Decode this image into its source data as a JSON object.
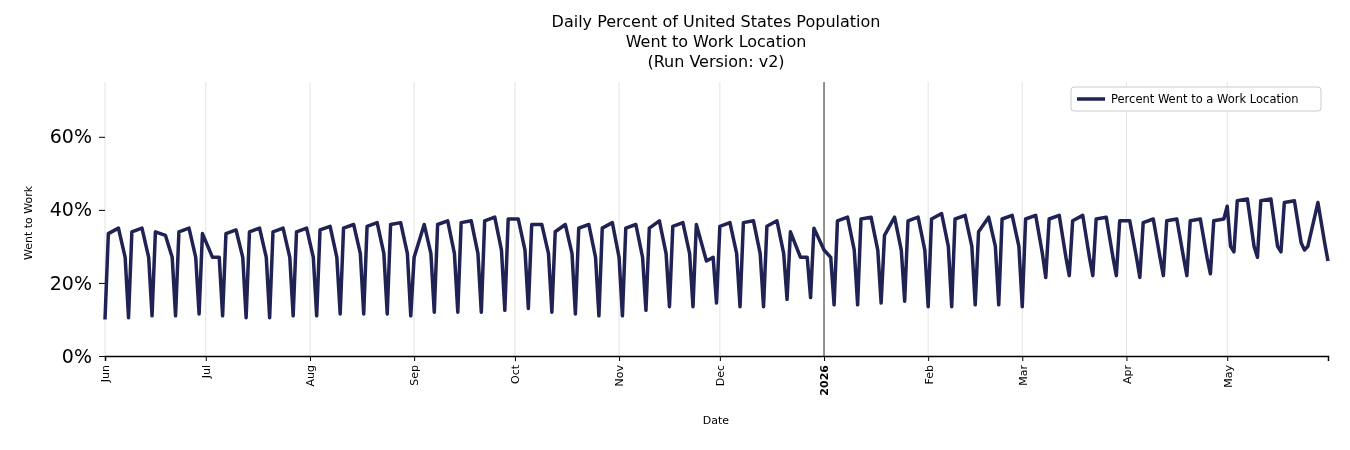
{
  "chart_data": {
    "type": "line",
    "title": "Daily Percent of United States Population\nWent to Work Location\n(Run Version: v2)",
    "xlabel": "Date",
    "ylabel": "Went to Work",
    "xlim": [
      "2025-06-01",
      "2026-05-31"
    ],
    "xticks": [
      {
        "value": "2025-06-01",
        "label": "Jun"
      },
      {
        "value": "2025-07-01",
        "label": "Jul"
      },
      {
        "value": "2025-08-01",
        "label": "Aug"
      },
      {
        "value": "2025-09-01",
        "label": "Sep"
      },
      {
        "value": "2025-10-01",
        "label": "Oct"
      },
      {
        "value": "2025-11-01",
        "label": "Nov"
      },
      {
        "value": "2025-12-01",
        "label": "Dec"
      },
      {
        "value": "2026-01-01",
        "label": "2026"
      },
      {
        "value": "2026-02-01",
        "label": "Feb"
      },
      {
        "value": "2026-03-01",
        "label": "Mar"
      },
      {
        "value": "2026-04-01",
        "label": "Apr"
      },
      {
        "value": "2026-05-01",
        "label": "May"
      }
    ],
    "ylim": [
      0,
      75
    ],
    "yticks": [
      {
        "value": 0,
        "label": "0%"
      },
      {
        "value": 20,
        "label": "20%"
      },
      {
        "value": 40,
        "label": "40%"
      },
      {
        "value": 60,
        "label": "60%"
      }
    ],
    "grid": "x",
    "legend": "top right",
    "marker": "none",
    "line_style": "solid",
    "ref_lines": [
      {
        "axis": "x",
        "value": "2026-01-01",
        "color": "#333333"
      }
    ],
    "x": [
      "2025-06-01",
      "2025-06-02",
      "2025-06-05",
      "2025-06-07",
      "2025-06-08",
      "2025-06-09",
      "2025-06-12",
      "2025-06-14",
      "2025-06-15",
      "2025-06-16",
      "2025-06-19",
      "2025-06-21",
      "2025-06-22",
      "2025-06-23",
      "2025-06-26",
      "2025-06-28",
      "2025-06-29",
      "2025-06-30",
      "2025-07-03",
      "2025-07-05",
      "2025-07-06",
      "2025-07-07",
      "2025-07-10",
      "2025-07-12",
      "2025-07-13",
      "2025-07-14",
      "2025-07-17",
      "2025-07-19",
      "2025-07-20",
      "2025-07-21",
      "2025-07-24",
      "2025-07-26",
      "2025-07-27",
      "2025-07-28",
      "2025-07-31",
      "2025-08-02",
      "2025-08-03",
      "2025-08-04",
      "2025-08-07",
      "2025-08-09",
      "2025-08-10",
      "2025-08-11",
      "2025-08-14",
      "2025-08-16",
      "2025-08-17",
      "2025-08-18",
      "2025-08-21",
      "2025-08-23",
      "2025-08-24",
      "2025-08-25",
      "2025-08-28",
      "2025-08-30",
      "2025-08-31",
      "2025-09-01",
      "2025-09-04",
      "2025-09-06",
      "2025-09-07",
      "2025-09-08",
      "2025-09-11",
      "2025-09-13",
      "2025-09-14",
      "2025-09-15",
      "2025-09-18",
      "2025-09-20",
      "2025-09-21",
      "2025-09-22",
      "2025-09-25",
      "2025-09-27",
      "2025-09-28",
      "2025-09-29",
      "2025-10-02",
      "2025-10-04",
      "2025-10-05",
      "2025-10-06",
      "2025-10-09",
      "2025-10-11",
      "2025-10-12",
      "2025-10-13",
      "2025-10-16",
      "2025-10-18",
      "2025-10-19",
      "2025-10-20",
      "2025-10-23",
      "2025-10-25",
      "2025-10-26",
      "2025-10-27",
      "2025-10-30",
      "2025-11-01",
      "2025-11-02",
      "2025-11-03",
      "2025-11-06",
      "2025-11-08",
      "2025-11-09",
      "2025-11-10",
      "2025-11-13",
      "2025-11-15",
      "2025-11-16",
      "2025-11-17",
      "2025-11-20",
      "2025-11-22",
      "2025-11-23",
      "2025-11-24",
      "2025-11-27",
      "2025-11-29",
      "2025-11-30",
      "2025-12-01",
      "2025-12-04",
      "2025-12-06",
      "2025-12-07",
      "2025-12-08",
      "2025-12-11",
      "2025-12-13",
      "2025-12-14",
      "2025-12-15",
      "2025-12-18",
      "2025-12-20",
      "2025-12-21",
      "2025-12-22",
      "2025-12-25",
      "2025-12-27",
      "2025-12-28",
      "2025-12-29",
      "2026-01-01",
      "2026-01-03",
      "2026-01-04",
      "2026-01-05",
      "2026-01-08",
      "2026-01-10",
      "2026-01-11",
      "2026-01-12",
      "2026-01-15",
      "2026-01-17",
      "2026-01-18",
      "2026-01-19",
      "2026-01-22",
      "2026-01-24",
      "2026-01-25",
      "2026-01-26",
      "2026-01-29",
      "2026-01-31",
      "2026-02-01",
      "2026-02-02",
      "2026-02-05",
      "2026-02-07",
      "2026-02-08",
      "2026-02-09",
      "2026-02-12",
      "2026-02-14",
      "2026-02-15",
      "2026-02-16",
      "2026-02-19",
      "2026-02-21",
      "2026-02-22",
      "2026-02-23",
      "2026-02-26",
      "2026-02-28",
      "2026-03-01",
      "2026-03-02",
      "2026-03-05",
      "2026-03-07",
      "2026-03-08",
      "2026-03-09",
      "2026-03-12",
      "2026-03-14",
      "2026-03-15",
      "2026-03-16",
      "2026-03-19",
      "2026-03-21",
      "2026-03-22",
      "2026-03-23",
      "2026-03-26",
      "2026-03-28",
      "2026-03-29",
      "2026-03-30",
      "2026-04-02",
      "2026-04-04",
      "2026-04-05",
      "2026-04-06",
      "2026-04-09",
      "2026-04-11",
      "2026-04-12",
      "2026-04-13",
      "2026-04-16",
      "2026-04-18",
      "2026-04-19",
      "2026-04-20",
      "2026-04-23",
      "2026-04-25",
      "2026-04-26",
      "2026-04-27",
      "2026-04-30",
      "2026-05-01",
      "2026-05-02",
      "2026-05-03",
      "2026-05-04",
      "2026-05-07",
      "2026-05-09",
      "2026-05-10",
      "2026-05-11",
      "2026-05-14",
      "2026-05-16",
      "2026-05-17",
      "2026-05-18",
      "2026-05-21",
      "2026-05-23",
      "2026-05-24",
      "2026-05-25",
      "2026-05-28",
      "2026-05-30",
      "2026-05-31"
    ],
    "series": [
      {
        "name": "Percent Went to a Work Location",
        "color": "#1f2253",
        "values": [
          10,
          33.5,
          35,
          27,
          10.5,
          34,
          35,
          27,
          11,
          34,
          33,
          27,
          11,
          34,
          35,
          27,
          11.5,
          33.5,
          27,
          27,
          11,
          33.5,
          34.5,
          27,
          10.5,
          34,
          35,
          27,
          10.5,
          34,
          35,
          27,
          11,
          34,
          35,
          27,
          11,
          34.5,
          35.5,
          27,
          11.5,
          35,
          36,
          28,
          11.5,
          35.5,
          36.5,
          28,
          11.5,
          36,
          36.5,
          28,
          11,
          27,
          36,
          28,
          12,
          36,
          37,
          28,
          12,
          36.5,
          37,
          28,
          12,
          37,
          38,
          29,
          12.5,
          37.5,
          37.5,
          29,
          13,
          36,
          36,
          28,
          12,
          34,
          36,
          28,
          11.5,
          35,
          36,
          27,
          11,
          35,
          36.5,
          27,
          11,
          35,
          36,
          27,
          12.5,
          35,
          37,
          28,
          13.5,
          35.5,
          36.5,
          28,
          13.5,
          36,
          26,
          27,
          14.5,
          35.5,
          36.5,
          28,
          13.5,
          36.5,
          37,
          28,
          13.5,
          35.5,
          37,
          28,
          15.5,
          34,
          27,
          27,
          16,
          35,
          29,
          27,
          14,
          37,
          38,
          29,
          14,
          37.5,
          38,
          29,
          14.5,
          33,
          38,
          29,
          15,
          37,
          38,
          29,
          13.5,
          37.5,
          39,
          30,
          13.5,
          37.5,
          38.5,
          30,
          14,
          34,
          38,
          30,
          14,
          37.5,
          38.5,
          30,
          13.5,
          37.5,
          38.5,
          28,
          21.5,
          37.5,
          38.5,
          27,
          22,
          37,
          38.5,
          27,
          22,
          37.5,
          38,
          27,
          22,
          37,
          37,
          27,
          21.5,
          36.5,
          37.5,
          27,
          22,
          37,
          37.5,
          27,
          22,
          37,
          37.5,
          27,
          22.5,
          37,
          37.5,
          41,
          30,
          28.5,
          42.5,
          43,
          30,
          27,
          42.5,
          43,
          30,
          28.5,
          42,
          42.5,
          31,
          29,
          30,
          42,
          31,
          26
        ]
      }
    ]
  }
}
